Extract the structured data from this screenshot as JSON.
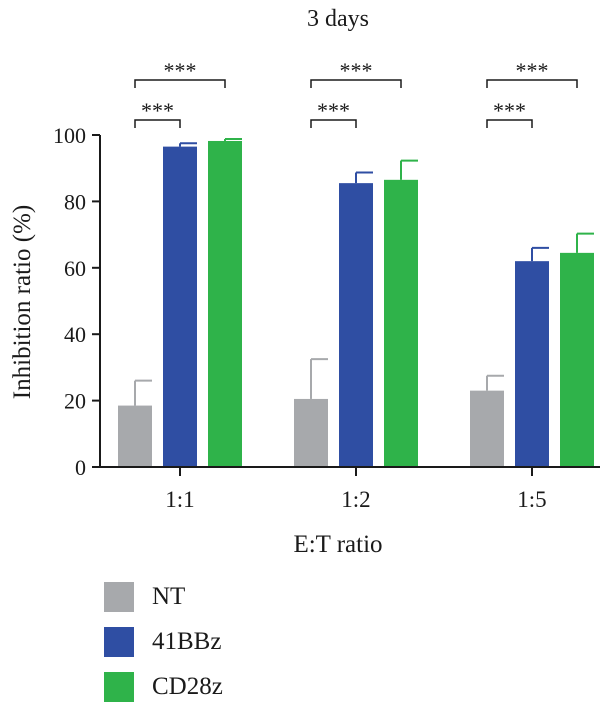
{
  "chart_data": {
    "type": "bar",
    "title": "3 days",
    "xlabel": "E:T ratio",
    "ylabel": "Inhibition ratio (%)",
    "ylim": [
      0,
      100
    ],
    "yticks": [
      0,
      20,
      40,
      60,
      80,
      100
    ],
    "categories": [
      "1:1",
      "1:2",
      "1:5"
    ],
    "series": [
      {
        "name": "NT",
        "color": "#a7a9ac",
        "values": [
          18.5,
          20.5,
          23
        ],
        "errors": [
          7.5,
          12,
          4.5
        ]
      },
      {
        "name": "41BBz",
        "color": "#2f4ea3",
        "values": [
          96.5,
          85.5,
          62
        ],
        "errors": [
          1,
          3.2,
          4
        ]
      },
      {
        "name": "CD28z",
        "color": "#2fb34a",
        "values": [
          98.2,
          86.5,
          64.5
        ],
        "errors": [
          0.6,
          5.8,
          5.8
        ]
      }
    ],
    "significance": [
      {
        "category": "1:1",
        "from": "NT",
        "to": "41BBz",
        "label": "***"
      },
      {
        "category": "1:1",
        "from": "NT",
        "to": "CD28z",
        "label": "***"
      },
      {
        "category": "1:2",
        "from": "NT",
        "to": "41BBz",
        "label": "***"
      },
      {
        "category": "1:2",
        "from": "NT",
        "to": "CD28z",
        "label": "***"
      },
      {
        "category": "1:5",
        "from": "NT",
        "to": "41BBz",
        "label": "***"
      },
      {
        "category": "1:5",
        "from": "NT",
        "to": "CD28z",
        "label": "***"
      }
    ],
    "legend_position": "bottom-left"
  }
}
